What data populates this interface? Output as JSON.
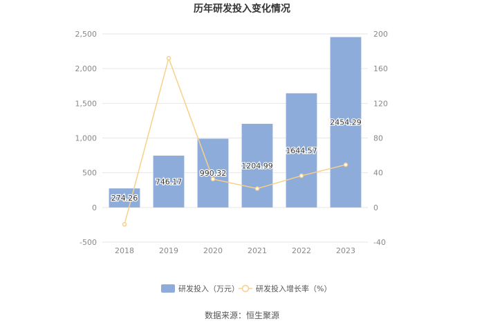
{
  "chart_data": {
    "type": "bar",
    "title": "历年研发投入变化情况",
    "categories": [
      "2018",
      "2019",
      "2020",
      "2021",
      "2022",
      "2023"
    ],
    "series": [
      {
        "name": "研发投入（万元）",
        "type": "bar",
        "axis": "left",
        "color": "#8eacd9",
        "values": [
          274.26,
          746.17,
          990.32,
          1204.99,
          1644.57,
          2454.29
        ],
        "labels": [
          "274.26",
          "746.17",
          "990.32",
          "1204.99",
          "1644.57",
          "2454.29"
        ]
      },
      {
        "name": "研发投入增长率（%）",
        "type": "line",
        "axis": "right",
        "color": "#f7d08a",
        "values": [
          -19.5,
          172.0,
          32.7,
          21.7,
          36.5,
          49.2
        ]
      }
    ],
    "y_left": {
      "min": -500,
      "max": 2500,
      "ticks": [
        "-500",
        "0",
        "500",
        "1,000",
        "1,500",
        "2,000",
        "2,500"
      ],
      "tick_values": [
        -500,
        0,
        500,
        1000,
        1500,
        2000,
        2500
      ]
    },
    "y_right": {
      "min": -40,
      "max": 200,
      "ticks": [
        "-40",
        "0",
        "40",
        "80",
        "120",
        "160",
        "200"
      ],
      "tick_values": [
        -40,
        0,
        40,
        80,
        120,
        160,
        200
      ]
    },
    "grid": true,
    "legend_position": "bottom",
    "source": "数据来源：恒生聚源"
  }
}
